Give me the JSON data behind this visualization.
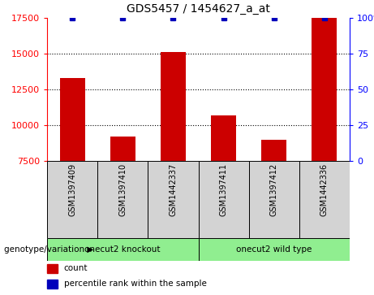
{
  "title": "GDS5457 / 1454627_a_at",
  "samples": [
    "GSM1397409",
    "GSM1397410",
    "GSM1442337",
    "GSM1397411",
    "GSM1397412",
    "GSM1442336"
  ],
  "counts": [
    13300,
    9200,
    15100,
    10700,
    9000,
    17500
  ],
  "percentiles": [
    100,
    100,
    100,
    100,
    100,
    100
  ],
  "groups": [
    {
      "label": "onecut2 knockout",
      "start": 0,
      "end": 3
    },
    {
      "label": "onecut2 wild type",
      "start": 3,
      "end": 6
    }
  ],
  "bar_color": "#CC0000",
  "percentile_color": "#0000BB",
  "ylim_left": [
    7500,
    17500
  ],
  "ylim_right": [
    0,
    100
  ],
  "yticks_left": [
    7500,
    10000,
    12500,
    15000,
    17500
  ],
  "yticks_right": [
    0,
    25,
    50,
    75,
    100
  ],
  "grid_values": [
    10000,
    12500,
    15000
  ],
  "sample_box_color": "#d3d3d3",
  "group_color": "#90EE90",
  "legend_items": [
    {
      "label": "count",
      "color": "#CC0000"
    },
    {
      "label": "percentile rank within the sample",
      "color": "#0000BB"
    }
  ],
  "genotype_label": "genotype/variation",
  "bar_width": 0.5
}
